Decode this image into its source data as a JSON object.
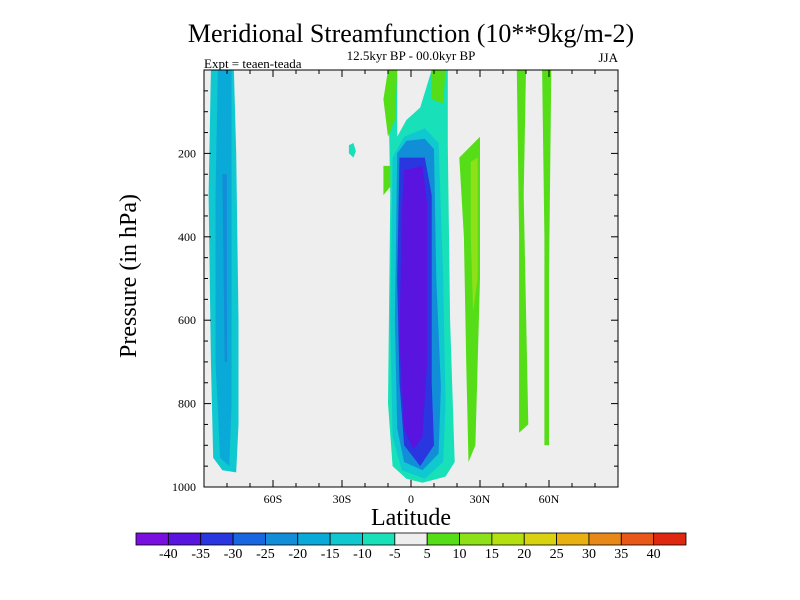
{
  "chart_data": {
    "type": "contour",
    "title": "Meridional Streamfunction (10**9kg/m-2)",
    "subtitle": "12.5kyr BP - 00.0kyr BP",
    "left_label": "Expt = teaen-teada",
    "right_label": "JJA",
    "xlabel": "Latitude",
    "ylabel": "Pressure (in hPa)",
    "xlim": [
      -90,
      90
    ],
    "ylim": [
      1000,
      0
    ],
    "x_ticks": [
      {
        "value": -60,
        "label": "60S"
      },
      {
        "value": -30,
        "label": "30S"
      },
      {
        "value": 0,
        "label": "0"
      },
      {
        "value": 30,
        "label": "30N"
      },
      {
        "value": 60,
        "label": "60N"
      }
    ],
    "y_ticks": [
      {
        "value": 200,
        "label": "200"
      },
      {
        "value": 400,
        "label": "400"
      },
      {
        "value": 600,
        "label": "600"
      },
      {
        "value": 800,
        "label": "800"
      },
      {
        "value": 1000,
        "label": "1000"
      }
    ],
    "levels": [
      -40,
      -35,
      -30,
      -25,
      -20,
      -15,
      -10,
      -5,
      5,
      10,
      15,
      20,
      25,
      30,
      35,
      40
    ],
    "level_labels": [
      "-40",
      "-35",
      "-30",
      "-25",
      "-20",
      "-15",
      "-10",
      "-5",
      "5",
      "10",
      "15",
      "20",
      "25",
      "30",
      "35",
      "40"
    ],
    "colors": [
      "#7a10e0",
      "#5a14e0",
      "#2a36e0",
      "#1866e0",
      "#128ed8",
      "#0aaad8",
      "#10c8d0",
      "#18e0b8",
      "#eeeeee",
      "#55dd18",
      "#8ee018",
      "#b4e010",
      "#d8d210",
      "#e8b010",
      "#e88818",
      "#e85818",
      "#e02810"
    ],
    "features": [
      {
        "name": "sh-cell-outer",
        "value": -12,
        "polygon": [
          [
            -87,
            0
          ],
          [
            -77,
            0
          ],
          [
            -76,
            200
          ],
          [
            -75,
            600
          ],
          [
            -75,
            850
          ],
          [
            -76,
            965
          ],
          [
            -82,
            960
          ],
          [
            -86,
            930
          ],
          [
            -87,
            700
          ],
          [
            -88,
            300
          ]
        ]
      },
      {
        "name": "sh-cell-mid",
        "value": -17,
        "polygon": [
          [
            -84,
            0
          ],
          [
            -78,
            0
          ],
          [
            -78,
            300
          ],
          [
            -78,
            800
          ],
          [
            -79,
            950
          ],
          [
            -83,
            930
          ],
          [
            -85,
            700
          ],
          [
            -85,
            300
          ]
        ]
      },
      {
        "name": "sh-cell-core",
        "value": -22,
        "polygon": [
          [
            -82,
            250
          ],
          [
            -80,
            250
          ],
          [
            -80,
            700
          ],
          [
            -81,
            700
          ]
        ]
      },
      {
        "name": "tropical-cell-outer",
        "value": -8,
        "polygon": [
          [
            -10,
            0
          ],
          [
            -6,
            0
          ],
          [
            -6,
            160
          ],
          [
            -2,
            120
          ],
          [
            4,
            90
          ],
          [
            9,
            0
          ],
          [
            16,
            0
          ],
          [
            16,
            180
          ],
          [
            17,
            600
          ],
          [
            19,
            940
          ],
          [
            15,
            975
          ],
          [
            5,
            990
          ],
          [
            -2,
            980
          ],
          [
            -8,
            950
          ],
          [
            -10,
            800
          ],
          [
            -9,
            300
          ]
        ]
      },
      {
        "name": "tropical-cell-15",
        "value": -15,
        "polygon": [
          [
            -8,
            210
          ],
          [
            -3,
            160
          ],
          [
            6,
            140
          ],
          [
            12,
            175
          ],
          [
            14,
            500
          ],
          [
            15,
            800
          ],
          [
            14,
            940
          ],
          [
            6,
            980
          ],
          [
            -4,
            960
          ],
          [
            -8,
            880
          ],
          [
            -9,
            600
          ]
        ]
      },
      {
        "name": "tropical-cell-25",
        "value": -25,
        "polygon": [
          [
            -6,
            200
          ],
          [
            -2,
            170
          ],
          [
            6,
            165
          ],
          [
            10,
            190
          ],
          [
            11,
            500
          ],
          [
            13,
            760
          ],
          [
            12,
            920
          ],
          [
            5,
            960
          ],
          [
            -3,
            940
          ],
          [
            -6,
            860
          ],
          [
            -7,
            600
          ]
        ]
      },
      {
        "name": "tropical-cell-30",
        "value": -32,
        "polygon": [
          [
            -5,
            210
          ],
          [
            6,
            210
          ],
          [
            9,
            300
          ],
          [
            9,
            750
          ],
          [
            10,
            900
          ],
          [
            4,
            950
          ],
          [
            -3,
            900
          ],
          [
            -5,
            750
          ],
          [
            -6,
            500
          ]
        ]
      },
      {
        "name": "tropical-cell-core",
        "value": -40,
        "polygon": [
          [
            -3,
            240
          ],
          [
            5,
            230
          ],
          [
            7,
            320
          ],
          [
            7,
            700
          ],
          [
            5,
            880
          ],
          [
            1,
            910
          ],
          [
            -3,
            860
          ],
          [
            -5,
            650
          ],
          [
            -4,
            350
          ]
        ]
      },
      {
        "name": "sh-subtropic-blob",
        "value": -8,
        "polygon": [
          [
            -27,
            180
          ],
          [
            -25,
            175
          ],
          [
            -24,
            195
          ],
          [
            -25,
            210
          ],
          [
            -27,
            200
          ]
        ]
      },
      {
        "name": "nh-green-col-a",
        "value": 7,
        "polygon": [
          [
            -10,
            0
          ],
          [
            -6,
            0
          ],
          [
            -7,
            120
          ],
          [
            -10,
            160
          ],
          [
            -12,
            70
          ]
        ]
      },
      {
        "name": "nh-green-col-b",
        "value": 7,
        "polygon": [
          [
            9,
            0
          ],
          [
            15,
            0
          ],
          [
            14,
            80
          ],
          [
            9,
            70
          ]
        ]
      },
      {
        "name": "nh-green-c",
        "value": 7,
        "polygon": [
          [
            -12,
            230
          ],
          [
            -9,
            230
          ],
          [
            -9,
            280
          ],
          [
            -12,
            300
          ]
        ]
      },
      {
        "name": "nh-subtropical-outer",
        "value": 7,
        "polygon": [
          [
            21,
            210
          ],
          [
            30,
            160
          ],
          [
            30,
            500
          ],
          [
            28,
            900
          ],
          [
            25,
            940
          ],
          [
            24,
            700
          ],
          [
            23,
            400
          ]
        ]
      },
      {
        "name": "nh-subtropical-core",
        "value": 12,
        "polygon": [
          [
            26,
            220
          ],
          [
            29,
            210
          ],
          [
            29,
            500
          ],
          [
            27,
            580
          ],
          [
            26,
            400
          ]
        ]
      },
      {
        "name": "nh-midlat-strip-a",
        "value": 7,
        "polygon": [
          [
            46,
            0
          ],
          [
            50,
            0
          ],
          [
            49,
            300
          ],
          [
            51,
            850
          ],
          [
            47,
            870
          ],
          [
            47,
            400
          ]
        ]
      },
      {
        "name": "nh-midlat-strip-b",
        "value": 7,
        "polygon": [
          [
            57,
            0
          ],
          [
            61,
            0
          ],
          [
            60,
            500
          ],
          [
            60,
            900
          ],
          [
            58,
            900
          ],
          [
            58,
            400
          ]
        ]
      }
    ]
  }
}
